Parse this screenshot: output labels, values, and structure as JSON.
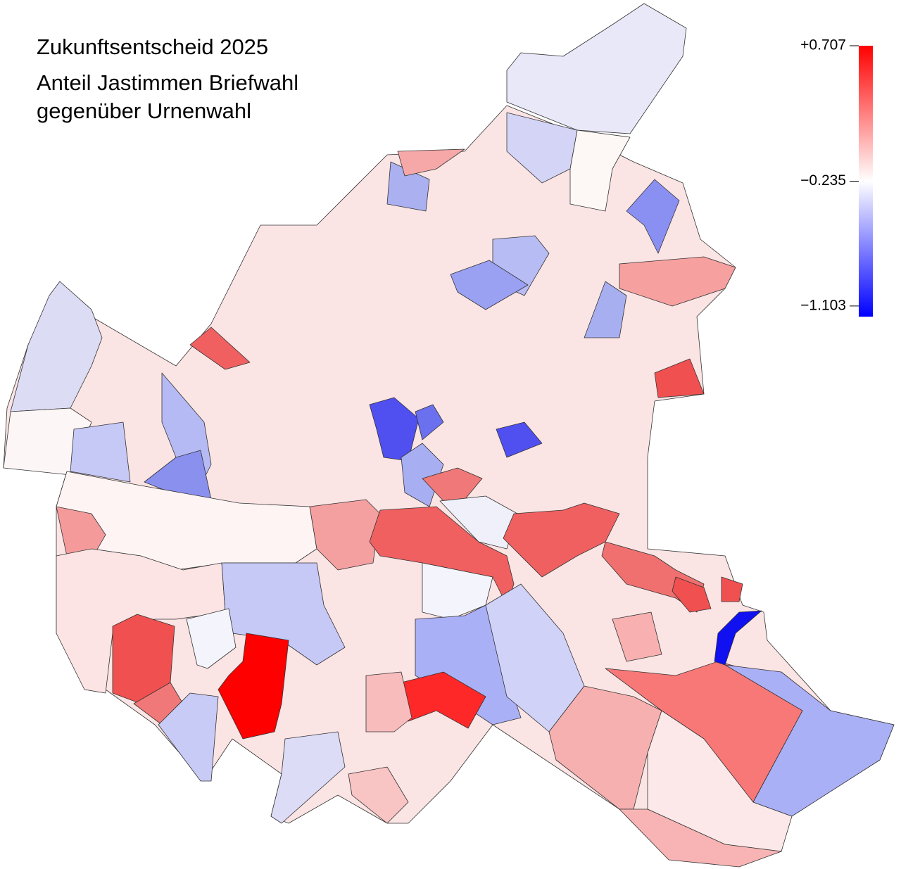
{
  "header": {
    "title": "Zukunftsentscheid 2025",
    "subtitle_lines": [
      "Anteil Jastimmen Briefwahl",
      "gegenüber Urnenwahl"
    ]
  },
  "legend": {
    "range": [
      -1.177,
      0.707
    ],
    "ticks": [
      {
        "value": 0.707,
        "label": "+0.707"
      },
      {
        "value": -0.235,
        "label": "−0.235"
      },
      {
        "value": -1.103,
        "label": "−1.103"
      }
    ],
    "colors": {
      "high": "#ff0000",
      "mid": "#ffffff",
      "low": "#0000ff"
    }
  }
}
